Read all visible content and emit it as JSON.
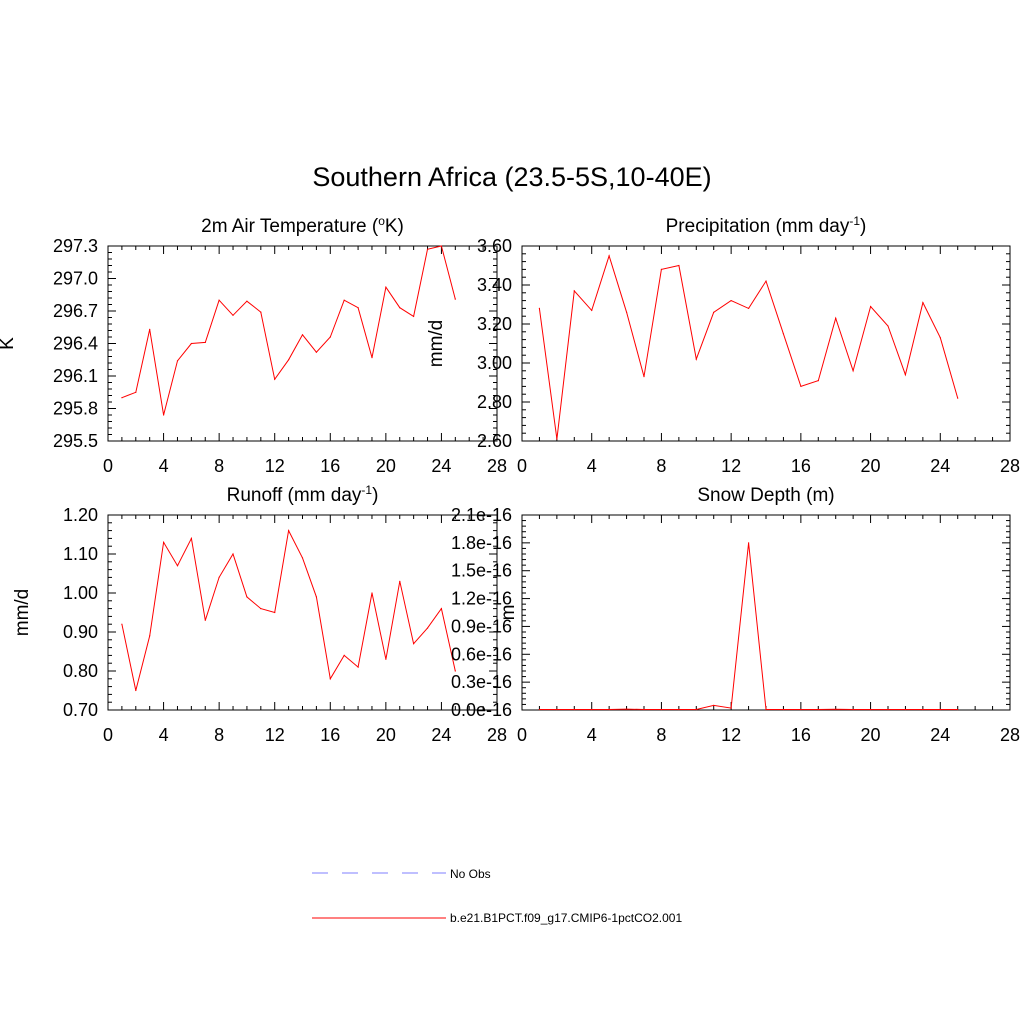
{
  "title": "Southern Africa (23.5-5S,10-40E)",
  "colors": {
    "series": "#ff0000",
    "obs": "#9999ff",
    "axis": "#000000"
  },
  "legend": {
    "obs_label": "No Obs",
    "model_label": "b.e21.B1PCT.f09_g17.CMIP6-1pctCO2.001"
  },
  "chart_data": [
    {
      "type": "line",
      "title": "2m Air Temperature (",
      "title_sup": "o",
      "title_after": "K)",
      "ylabel": "K",
      "xlim": [
        0,
        28
      ],
      "ylim": [
        295.5,
        297.3
      ],
      "xticks": [
        "0",
        "4",
        "8",
        "12",
        "16",
        "20",
        "24",
        "28"
      ],
      "yticks": [
        "295.5",
        "295.8",
        "296.1",
        "296.4",
        "296.7",
        "297.0",
        "297.3"
      ],
      "series": [
        {
          "x": [
            1,
            2,
            3,
            4,
            5,
            6,
            7,
            8,
            9,
            10,
            11,
            12,
            13,
            14,
            15,
            16,
            17,
            18,
            19,
            20,
            21,
            22,
            23,
            24,
            25
          ],
          "values": [
            295.9,
            295.95,
            296.53,
            295.74,
            296.24,
            296.4,
            296.41,
            296.8,
            296.66,
            296.79,
            296.69,
            296.07,
            296.25,
            296.48,
            296.32,
            296.46,
            296.8,
            296.73,
            296.27,
            296.92,
            296.73,
            296.65,
            297.27,
            297.3,
            296.81
          ]
        }
      ]
    },
    {
      "type": "line",
      "title": "Precipitation (mm day",
      "title_sup": "-1",
      "title_after": ")",
      "ylabel": "mm/d",
      "xlim": [
        0,
        28
      ],
      "ylim": [
        2.6,
        3.6
      ],
      "xticks": [
        "0",
        "4",
        "8",
        "12",
        "16",
        "20",
        "24",
        "28"
      ],
      "yticks": [
        "2.60",
        "2.80",
        "3.00",
        "3.20",
        "3.40",
        "3.60"
      ],
      "series": [
        {
          "x": [
            1,
            2,
            3,
            4,
            5,
            6,
            7,
            8,
            9,
            10,
            11,
            12,
            13,
            14,
            15,
            16,
            17,
            18,
            19,
            20,
            21,
            22,
            23,
            24,
            25
          ],
          "values": [
            3.28,
            2.61,
            3.37,
            3.27,
            3.55,
            3.26,
            2.93,
            3.48,
            3.5,
            3.02,
            3.26,
            3.32,
            3.28,
            3.42,
            3.15,
            2.88,
            2.91,
            3.23,
            2.96,
            3.29,
            3.19,
            2.94,
            3.31,
            3.13,
            2.82
          ]
        }
      ]
    },
    {
      "type": "line",
      "title": "Runoff (mm day",
      "title_sup": "-1",
      "title_after": ")",
      "ylabel": "mm/d",
      "xlim": [
        0,
        28
      ],
      "ylim": [
        0.7,
        1.2
      ],
      "xticks": [
        "0",
        "4",
        "8",
        "12",
        "16",
        "20",
        "24",
        "28"
      ],
      "yticks": [
        "0.70",
        "0.80",
        "0.90",
        "1.00",
        "1.10",
        "1.20"
      ],
      "series": [
        {
          "x": [
            1,
            2,
            3,
            4,
            5,
            6,
            7,
            8,
            9,
            10,
            11,
            12,
            13,
            14,
            15,
            16,
            17,
            18,
            19,
            20,
            21,
            22,
            23,
            24,
            25
          ],
          "values": [
            0.92,
            0.75,
            0.89,
            1.13,
            1.07,
            1.14,
            0.93,
            1.04,
            1.1,
            0.99,
            0.96,
            0.95,
            1.16,
            1.09,
            0.99,
            0.78,
            0.84,
            0.81,
            1.0,
            0.83,
            1.03,
            0.87,
            0.91,
            0.96,
            0.8
          ]
        }
      ]
    },
    {
      "type": "line",
      "title": "Snow Depth (m)",
      "title_sup": "",
      "title_after": "",
      "ylabel": "m",
      "xlim": [
        0,
        28
      ],
      "ylim": [
        0,
        2.1
      ],
      "xticks": [
        "0",
        "4",
        "8",
        "12",
        "16",
        "20",
        "24",
        "28"
      ],
      "yticks": [
        "0.0e-16",
        "0.3e-16",
        "0.6e-16",
        "0.9e-16",
        "1.2e-16",
        "1.5e-16",
        "1.8e-16",
        "2.1e-16"
      ],
      "series": [
        {
          "x": [
            1,
            2,
            3,
            4,
            5,
            6,
            7,
            8,
            9,
            10,
            11,
            12,
            13,
            14,
            15,
            16,
            17,
            18,
            19,
            20,
            21,
            22,
            23,
            24,
            25
          ],
          "values": [
            0.005,
            0.005,
            0.005,
            0.005,
            0.005,
            0.01,
            0.005,
            0.005,
            0.005,
            0.005,
            0.05,
            0.02,
            1.8,
            0.005,
            0.005,
            0.005,
            0.005,
            0.008,
            0.005,
            0.005,
            0.005,
            0.005,
            0.005,
            0.005,
            0.005
          ]
        }
      ]
    }
  ]
}
